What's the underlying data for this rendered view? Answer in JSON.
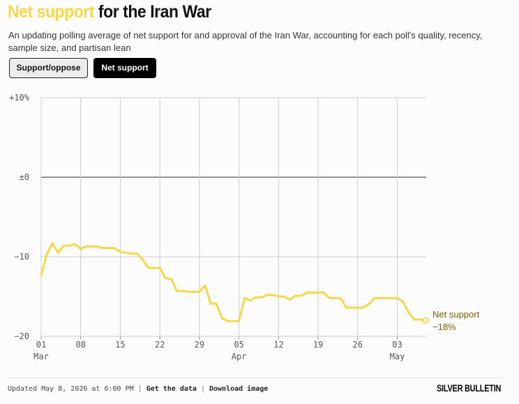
{
  "header": {
    "title_highlight": "Net support",
    "title_rest": " for the Iran War",
    "subtitle": "An updating polling average of net support for and approval of the Iran War, accounting for each poll's quality, recency, sample size, and partisan lean"
  },
  "toggles": {
    "support_oppose_label": "Support/oppose",
    "net_support_label": "Net support",
    "selected": "net_support"
  },
  "colors": {
    "accent": "#f7d74a",
    "line": "#f7d74a",
    "end_label": "#7a6400",
    "grid": "#cccccc",
    "zero_line": "#555555"
  },
  "chart_data": {
    "type": "line",
    "title": "",
    "xlabel": "",
    "ylabel": "",
    "x_range": [
      "2026-03-01",
      "2026-05-08"
    ],
    "ylim": [
      -20,
      10
    ],
    "grid": true,
    "y_ticks": [
      {
        "value": 10,
        "label": "+10%"
      },
      {
        "value": 0,
        "label": "±0"
      },
      {
        "value": -10,
        "label": "−10"
      },
      {
        "value": -20,
        "label": "−20"
      }
    ],
    "x_ticks": [
      {
        "date": "2026-03-01",
        "day": "01",
        "month": "Mar"
      },
      {
        "date": "2026-03-08",
        "day": "08",
        "month": ""
      },
      {
        "date": "2026-03-15",
        "day": "15",
        "month": ""
      },
      {
        "date": "2026-03-22",
        "day": "22",
        "month": ""
      },
      {
        "date": "2026-03-29",
        "day": "29",
        "month": ""
      },
      {
        "date": "2026-04-05",
        "day": "05",
        "month": "Apr"
      },
      {
        "date": "2026-04-12",
        "day": "12",
        "month": ""
      },
      {
        "date": "2026-04-19",
        "day": "19",
        "month": ""
      },
      {
        "date": "2026-04-26",
        "day": "26",
        "month": ""
      },
      {
        "date": "2026-05-03",
        "day": "03",
        "month": "May"
      }
    ],
    "series": [
      {
        "name": "Net support",
        "end_value_label": "−18%",
        "points": [
          {
            "date": "2026-03-01",
            "value": -12.3
          },
          {
            "date": "2026-03-02",
            "value": -9.7
          },
          {
            "date": "2026-03-03",
            "value": -8.3
          },
          {
            "date": "2026-03-04",
            "value": -9.5
          },
          {
            "date": "2026-03-05",
            "value": -8.6
          },
          {
            "date": "2026-03-06",
            "value": -8.6
          },
          {
            "date": "2026-03-07",
            "value": -8.4
          },
          {
            "date": "2026-03-08",
            "value": -9.0
          },
          {
            "date": "2026-03-09",
            "value": -8.7
          },
          {
            "date": "2026-03-10",
            "value": -8.7
          },
          {
            "date": "2026-03-11",
            "value": -8.7
          },
          {
            "date": "2026-03-12",
            "value": -8.9
          },
          {
            "date": "2026-03-13",
            "value": -8.9
          },
          {
            "date": "2026-03-14",
            "value": -8.9
          },
          {
            "date": "2026-03-15",
            "value": -9.4
          },
          {
            "date": "2026-03-16",
            "value": -9.5
          },
          {
            "date": "2026-03-17",
            "value": -9.6
          },
          {
            "date": "2026-03-18",
            "value": -9.6
          },
          {
            "date": "2026-03-19",
            "value": -10.4
          },
          {
            "date": "2026-03-20",
            "value": -11.4
          },
          {
            "date": "2026-03-21",
            "value": -11.4
          },
          {
            "date": "2026-03-22",
            "value": -11.4
          },
          {
            "date": "2026-03-23",
            "value": -12.7
          },
          {
            "date": "2026-03-24",
            "value": -12.8
          },
          {
            "date": "2026-03-25",
            "value": -14.3
          },
          {
            "date": "2026-03-26",
            "value": -14.3
          },
          {
            "date": "2026-03-27",
            "value": -14.4
          },
          {
            "date": "2026-03-28",
            "value": -14.4
          },
          {
            "date": "2026-03-29",
            "value": -14.4
          },
          {
            "date": "2026-03-30",
            "value": -13.6
          },
          {
            "date": "2026-03-31",
            "value": -15.9
          },
          {
            "date": "2026-04-01",
            "value": -15.9
          },
          {
            "date": "2026-04-02",
            "value": -17.7
          },
          {
            "date": "2026-04-03",
            "value": -18.1
          },
          {
            "date": "2026-04-04",
            "value": -18.1
          },
          {
            "date": "2026-04-05",
            "value": -18.1
          },
          {
            "date": "2026-04-06",
            "value": -15.2
          },
          {
            "date": "2026-04-07",
            "value": -15.5
          },
          {
            "date": "2026-04-08",
            "value": -15.1
          },
          {
            "date": "2026-04-09",
            "value": -15.1
          },
          {
            "date": "2026-04-10",
            "value": -14.8
          },
          {
            "date": "2026-04-11",
            "value": -14.8
          },
          {
            "date": "2026-04-12",
            "value": -15.0
          },
          {
            "date": "2026-04-13",
            "value": -15.0
          },
          {
            "date": "2026-04-14",
            "value": -15.4
          },
          {
            "date": "2026-04-15",
            "value": -14.9
          },
          {
            "date": "2026-04-16",
            "value": -14.9
          },
          {
            "date": "2026-04-17",
            "value": -14.5
          },
          {
            "date": "2026-04-18",
            "value": -14.5
          },
          {
            "date": "2026-04-19",
            "value": -14.5
          },
          {
            "date": "2026-04-20",
            "value": -14.5
          },
          {
            "date": "2026-04-21",
            "value": -15.2
          },
          {
            "date": "2026-04-22",
            "value": -15.2
          },
          {
            "date": "2026-04-23",
            "value": -15.2
          },
          {
            "date": "2026-04-24",
            "value": -16.4
          },
          {
            "date": "2026-04-25",
            "value": -16.4
          },
          {
            "date": "2026-04-26",
            "value": -16.4
          },
          {
            "date": "2026-04-27",
            "value": -16.4
          },
          {
            "date": "2026-04-28",
            "value": -15.9
          },
          {
            "date": "2026-04-29",
            "value": -15.2
          },
          {
            "date": "2026-04-30",
            "value": -15.2
          },
          {
            "date": "2026-05-01",
            "value": -15.2
          },
          {
            "date": "2026-05-02",
            "value": -15.2
          },
          {
            "date": "2026-05-03",
            "value": -15.2
          },
          {
            "date": "2026-05-04",
            "value": -15.6
          },
          {
            "date": "2026-05-05",
            "value": -17.0
          },
          {
            "date": "2026-05-06",
            "value": -17.9
          },
          {
            "date": "2026-05-07",
            "value": -17.9
          },
          {
            "date": "2026-05-08",
            "value": -18.0
          }
        ]
      }
    ]
  },
  "footer": {
    "updated": "Updated May 8, 2026 at 6:00 PM",
    "separator": " | ",
    "get_data": "Get the data",
    "download": "Download image",
    "brand": "SILVER BULLETIN"
  }
}
